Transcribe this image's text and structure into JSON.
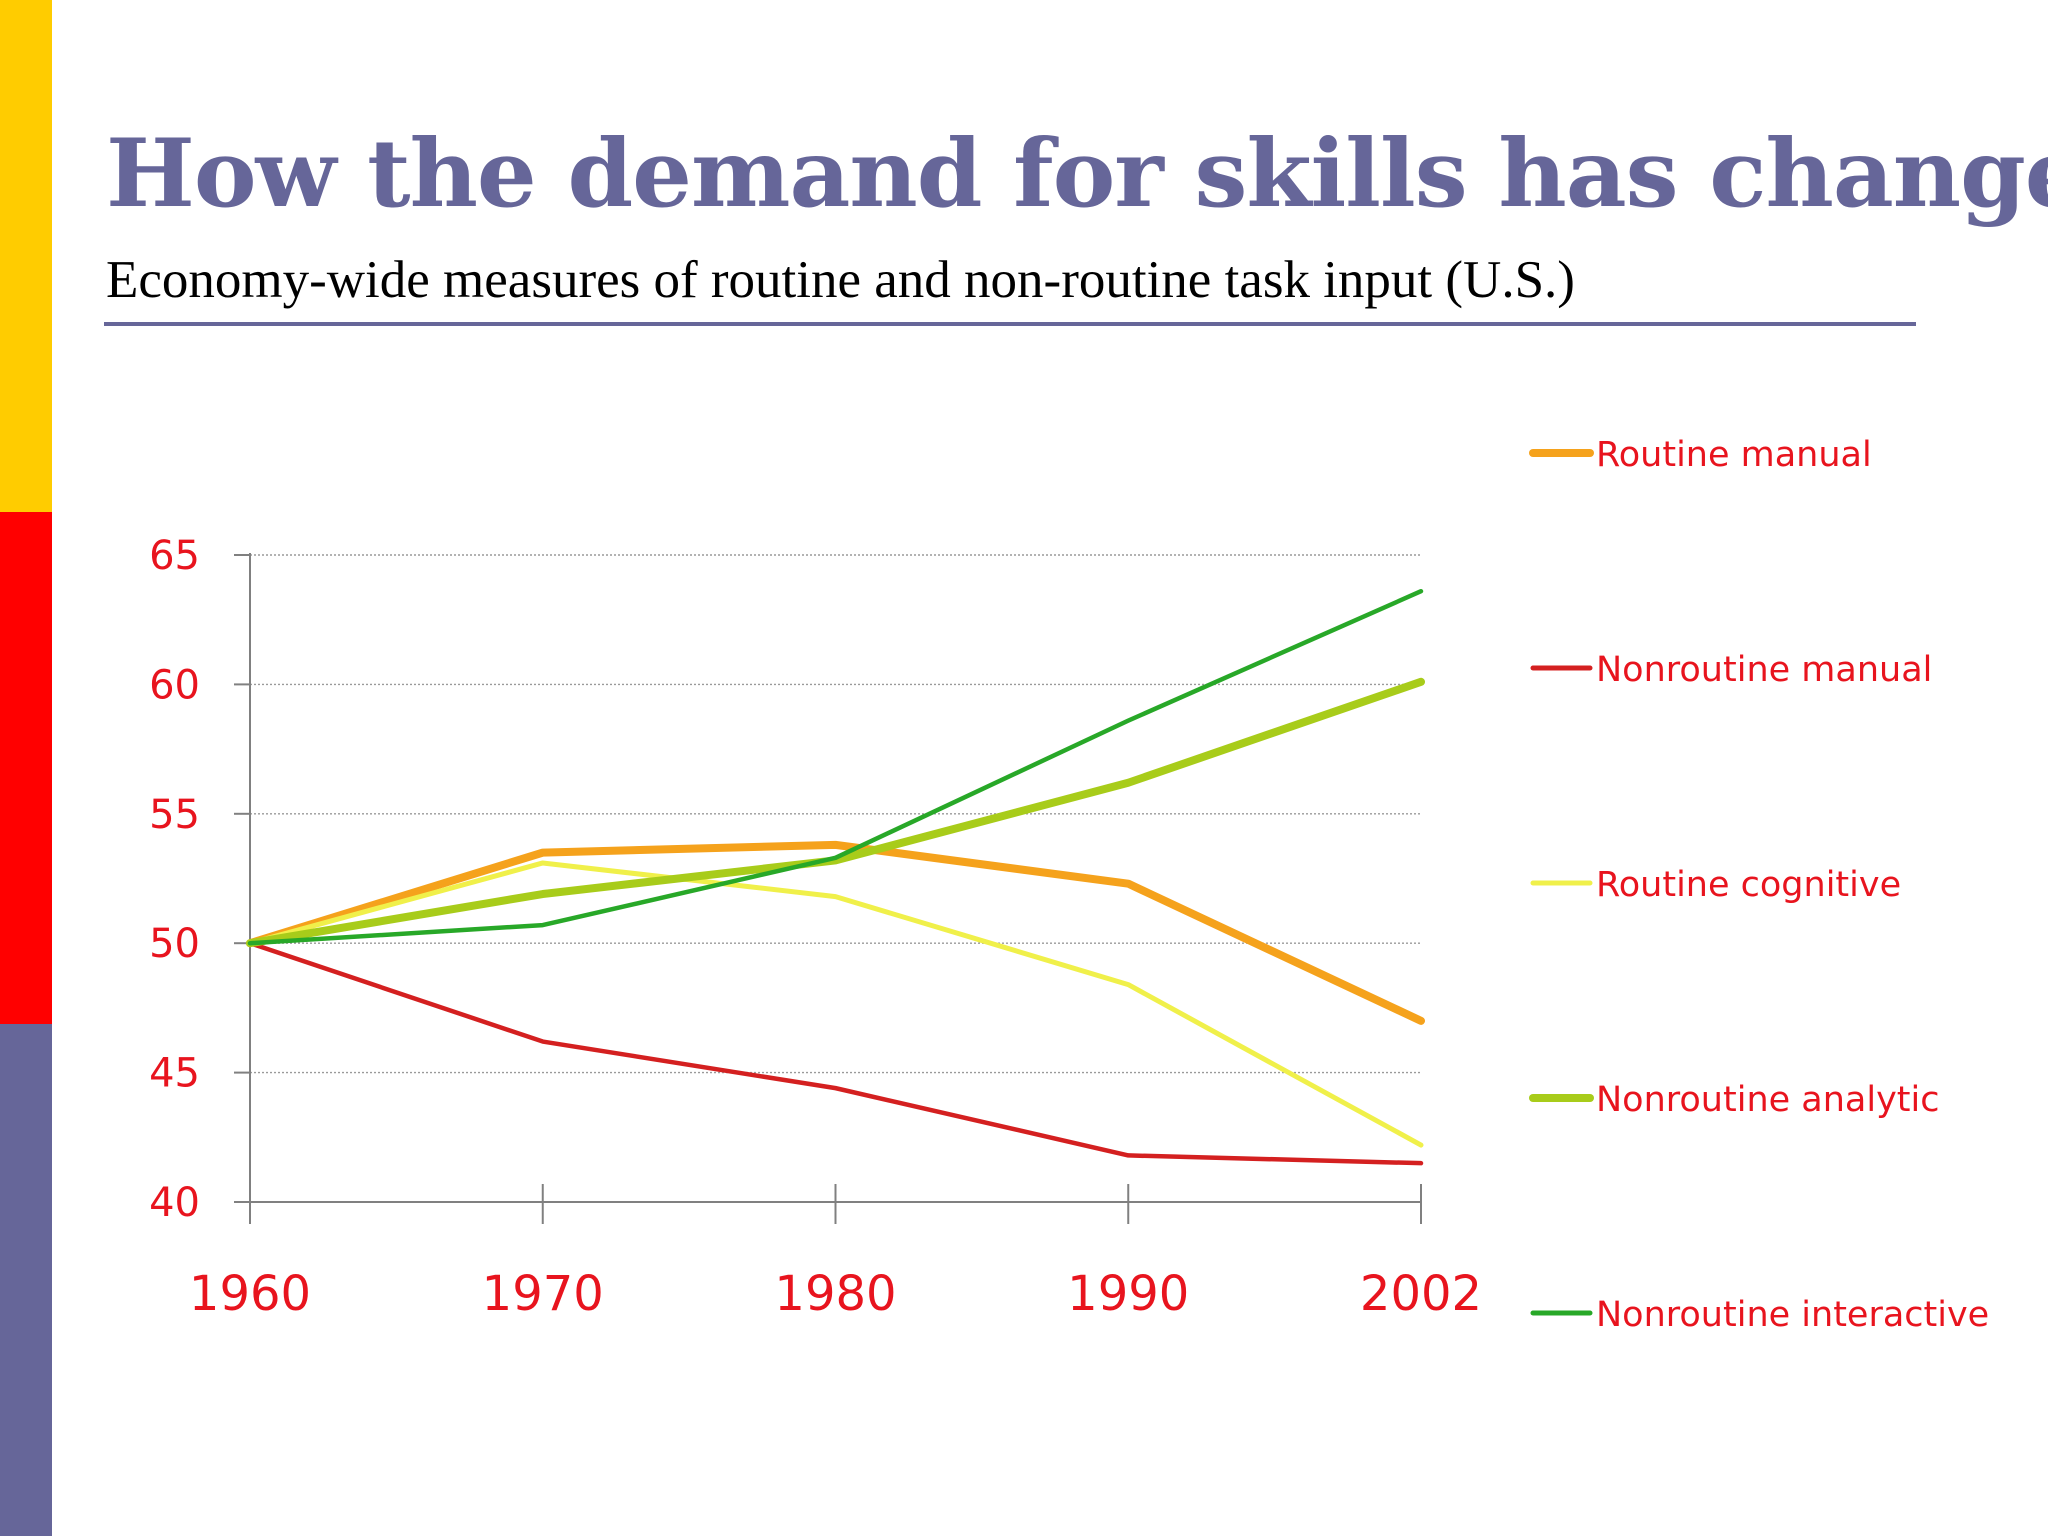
{
  "slide": {
    "title": "How the demand for skills has changed",
    "subtitle": "Economy-wide measures of routine and non-routine task input (U.S.)"
  },
  "colors": {
    "side_bar": [
      "#FFCC00",
      "#FF0000",
      "#666699"
    ],
    "title": "#666699",
    "rule": "#666699",
    "axis_text": "#E8141E",
    "grid": "#9a9a9a",
    "axis": "#808080"
  },
  "chart_data": {
    "type": "line",
    "title": "",
    "xlabel": "",
    "ylabel": "",
    "categories": [
      "1960",
      "1970",
      "1980",
      "1990",
      "2002"
    ],
    "yticks": [
      40,
      45,
      50,
      55,
      60,
      65
    ],
    "ylim": [
      40,
      65
    ],
    "grid": true,
    "legend_position": "right",
    "series": [
      {
        "name": "Routine manual",
        "color": "#F5A21C",
        "width": 8,
        "values": [
          50,
          53.5,
          53.8,
          52.3,
          47
        ]
      },
      {
        "name": "Nonroutine manual",
        "color": "#D42020",
        "width": 4.5,
        "values": [
          50,
          46.2,
          44.4,
          41.8,
          41.5
        ]
      },
      {
        "name": "Routine cognitive",
        "color": "#F0F04A",
        "width": 5,
        "values": [
          50,
          53.1,
          51.8,
          48.4,
          42.2
        ]
      },
      {
        "name": "Nonroutine analytic",
        "color": "#A8CC1A",
        "width": 8,
        "values": [
          50,
          51.9,
          53.2,
          56.2,
          60.1
        ]
      },
      {
        "name": "Nonroutine interactive",
        "color": "#28A828",
        "width": 4.5,
        "values": [
          50,
          50.7,
          53.3,
          58.6,
          63.6
        ]
      }
    ]
  }
}
